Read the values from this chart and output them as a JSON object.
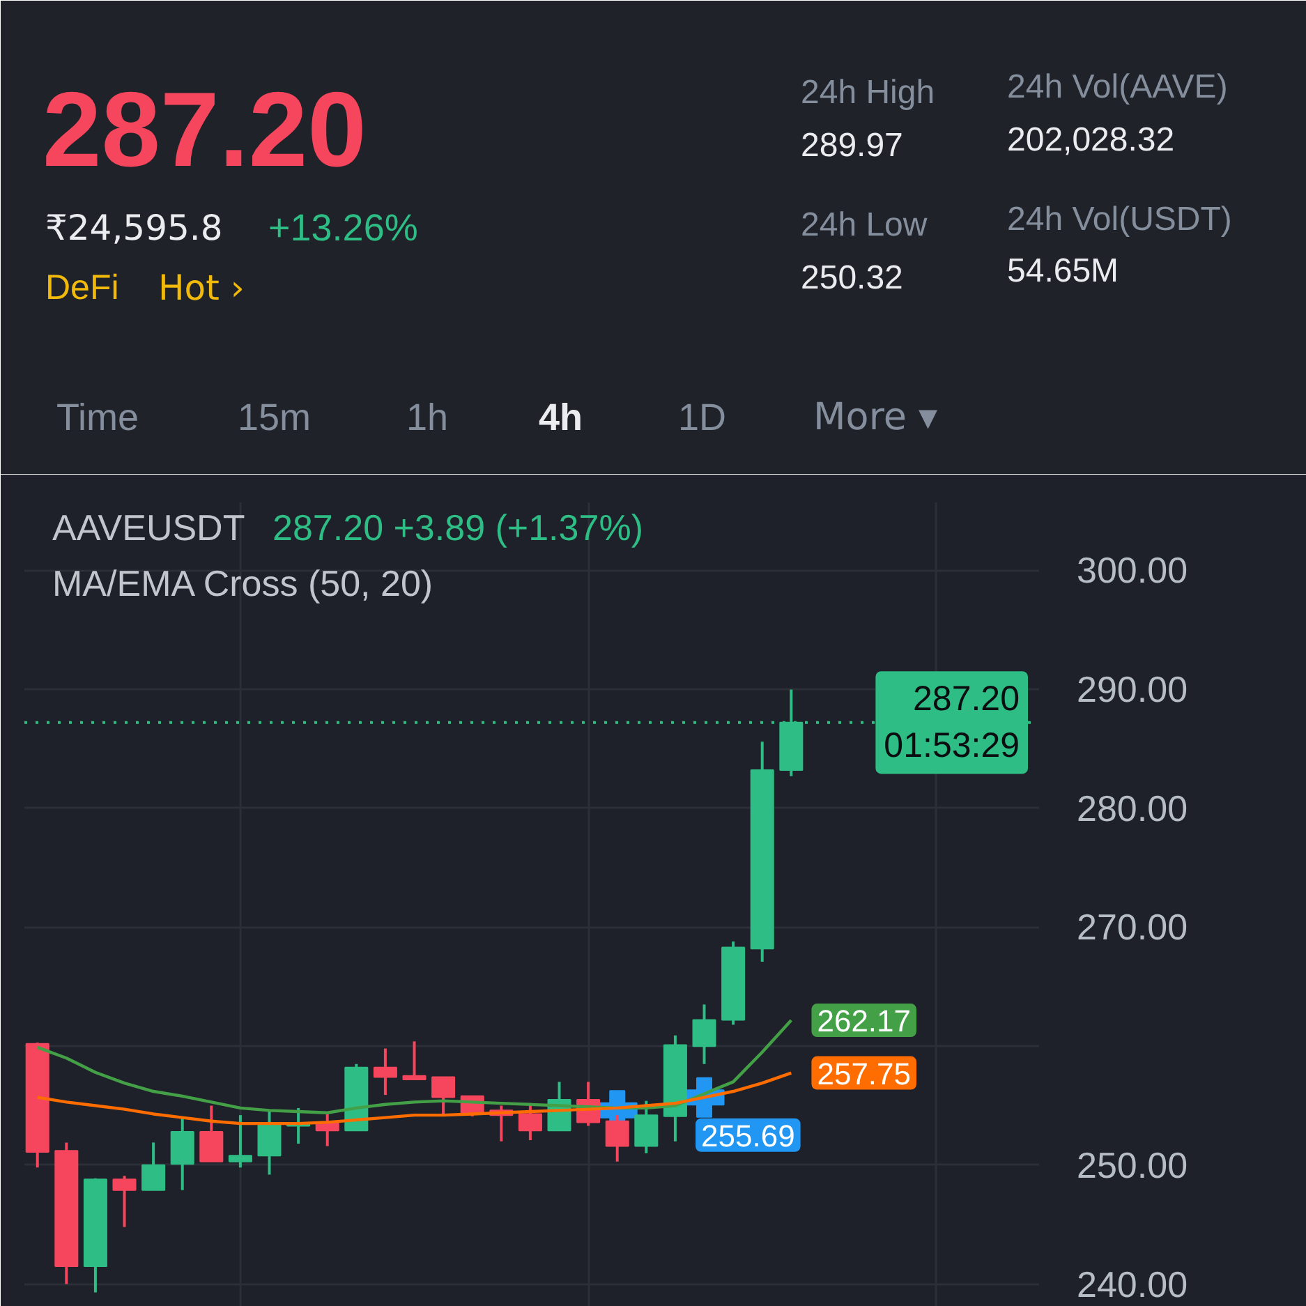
{
  "chart_data": [
    {
      "type": "other",
      "title": "287.20",
      "annotations": [
        "₹24,595.8",
        "+13.26%",
        "DeFi",
        "Hot ›",
        "24h High",
        "289.97",
        "24h Low",
        "250.32",
        "24h Vol(AAVE)",
        "202,028.32",
        "24h Vol(USDT)",
        "54.65M",
        "Time",
        "15m",
        "1h",
        "4h",
        "1D",
        "More ▾"
      ]
    },
    {
      "type": "candlestick",
      "title": "AAVEUSDT",
      "subtitle": "MA/EMA Cross (50, 20)",
      "annotations": [
        "287.20  +3.89 (+1.37%)",
        {
          "text": "01:53:29",
          "y": 287.2
        }
      ],
      "categories": [
        null,
        null,
        null,
        null,
        null,
        null,
        null,
        null,
        null,
        null,
        null,
        null,
        null,
        null,
        null,
        null,
        null,
        null,
        null,
        null,
        null,
        null,
        null,
        null,
        null,
        null,
        null
      ],
      "ohlc": [
        [
          260.2,
          260.3,
          249.8,
          251.1
        ],
        [
          251.2,
          251.9,
          240.0,
          241.5
        ],
        [
          241.5,
          248.9,
          239.3,
          248.8
        ],
        [
          248.8,
          249.1,
          244.8,
          247.9
        ],
        [
          247.9,
          251.9,
          247.9,
          250.0
        ],
        [
          250.1,
          254.1,
          247.9,
          252.8
        ],
        [
          252.8,
          255.0,
          250.3,
          250.3
        ],
        [
          250.3,
          254.2,
          249.8,
          250.8
        ],
        [
          250.8,
          254.6,
          249.2,
          253.4
        ],
        [
          253.3,
          254.8,
          251.8,
          253.4
        ],
        [
          253.5,
          254.3,
          251.6,
          252.9
        ],
        [
          252.9,
          258.5,
          252.9,
          258.2
        ],
        [
          258.2,
          259.8,
          255.9,
          257.4
        ],
        [
          257.5,
          260.4,
          257.2,
          257.2
        ],
        [
          257.4,
          257.4,
          254.2,
          255.7
        ],
        [
          255.8,
          255.8,
          254.1,
          254.3
        ],
        [
          254.6,
          255.0,
          252.0,
          254.2
        ],
        [
          254.3,
          255.2,
          252.1,
          252.9
        ],
        [
          252.9,
          257.0,
          252.9,
          255.5
        ],
        [
          255.5,
          257.0,
          253.3,
          253.6
        ],
        [
          253.7,
          254.2,
          250.3,
          251.6
        ],
        [
          251.6,
          255.4,
          251.0,
          254.2
        ],
        [
          254.1,
          260.9,
          252.0,
          260.1
        ],
        [
          260.0,
          263.5,
          258.5,
          262.2
        ],
        [
          262.2,
          268.8,
          261.8,
          268.3
        ],
        [
          268.2,
          285.6,
          267.1,
          283.2
        ],
        [
          283.2,
          289.97,
          282.7,
          287.2
        ]
      ],
      "colors": [
        "#f6465d",
        "#f6465d",
        "#2ebd85",
        "#f6465d",
        "#2ebd85",
        "#2ebd85",
        "#f6465d",
        "#2ebd85",
        "#2ebd85",
        "#2ebd85",
        "#f6465d",
        "#2ebd85",
        "#f6465d",
        "#f6465d",
        "#f6465d",
        "#f6465d",
        "#f6465d",
        "#f6465d",
        "#2ebd85",
        "#f6465d",
        "#f6465d",
        "#2ebd85",
        "#2ebd85",
        "#2ebd85",
        "#2ebd85",
        "#2ebd85",
        "#2ebd85"
      ],
      "series": [
        {
          "type": "line",
          "color": "#43a047",
          "values": [
            259.9,
            259.0,
            257.8,
            256.9,
            256.2,
            255.8,
            255.3,
            254.8,
            254.6,
            254.5,
            254.4,
            254.8,
            255.1,
            255.3,
            255.4,
            255.3,
            255.2,
            255.1,
            255.0,
            254.9,
            254.8,
            254.8,
            255.0,
            256.0,
            257.0,
            259.5,
            262.17
          ],
          "value_labels": [
            null,
            null,
            null,
            null,
            null,
            null,
            null,
            null,
            null,
            null,
            null,
            null,
            null,
            null,
            null,
            null,
            null,
            null,
            null,
            null,
            null,
            null,
            null,
            null,
            null,
            null,
            "262.17"
          ]
        },
        {
          "type": "line",
          "color": "#ff6d00",
          "values": [
            255.7,
            255.3,
            255.0,
            254.7,
            254.3,
            254.0,
            253.7,
            253.5,
            253.5,
            253.5,
            253.6,
            253.8,
            254.0,
            254.2,
            254.2,
            254.3,
            254.4,
            254.5,
            254.6,
            254.7,
            254.8,
            255.0,
            255.2,
            255.7,
            256.2,
            256.9,
            257.75
          ],
          "value_labels": [
            null,
            null,
            null,
            null,
            null,
            null,
            null,
            null,
            null,
            null,
            null,
            null,
            null,
            null,
            null,
            null,
            null,
            null,
            null,
            null,
            null,
            null,
            null,
            null,
            null,
            null,
            "257.75"
          ]
        },
        {
          "type": "scatter",
          "color": "#2196f3",
          "marker": "cross",
          "values": [
            null,
            null,
            null,
            null,
            null,
            null,
            null,
            null,
            null,
            null,
            null,
            null,
            null,
            null,
            null,
            null,
            null,
            null,
            null,
            null,
            254.6,
            null,
            null,
            255.69,
            null,
            null,
            null
          ],
          "value_labels": [
            null,
            null,
            null,
            null,
            null,
            null,
            null,
            null,
            null,
            null,
            null,
            null,
            null,
            null,
            null,
            null,
            null,
            null,
            null,
            null,
            null,
            null,
            null,
            "255.69",
            null,
            null,
            null
          ]
        }
      ],
      "ref_lines": [
        {
          "axis": "y",
          "value": 287.2,
          "label": "287.20",
          "color": "#2ebd85",
          "line_style": "dotted"
        }
      ],
      "ylim": [
        238.1,
        305.7
      ],
      "yticks": [
        {
          "value": 240,
          "label": "240.00"
        },
        {
          "value": 250,
          "label": "250.00"
        },
        {
          "value": 260,
          "label": null
        },
        {
          "value": 270,
          "label": "270.00"
        },
        {
          "value": 280,
          "label": "280.00"
        },
        {
          "value": 290,
          "label": "290.00"
        },
        {
          "value": 300,
          "label": "300.00"
        }
      ],
      "grid": true,
      "tick_labels": "y"
    }
  ]
}
